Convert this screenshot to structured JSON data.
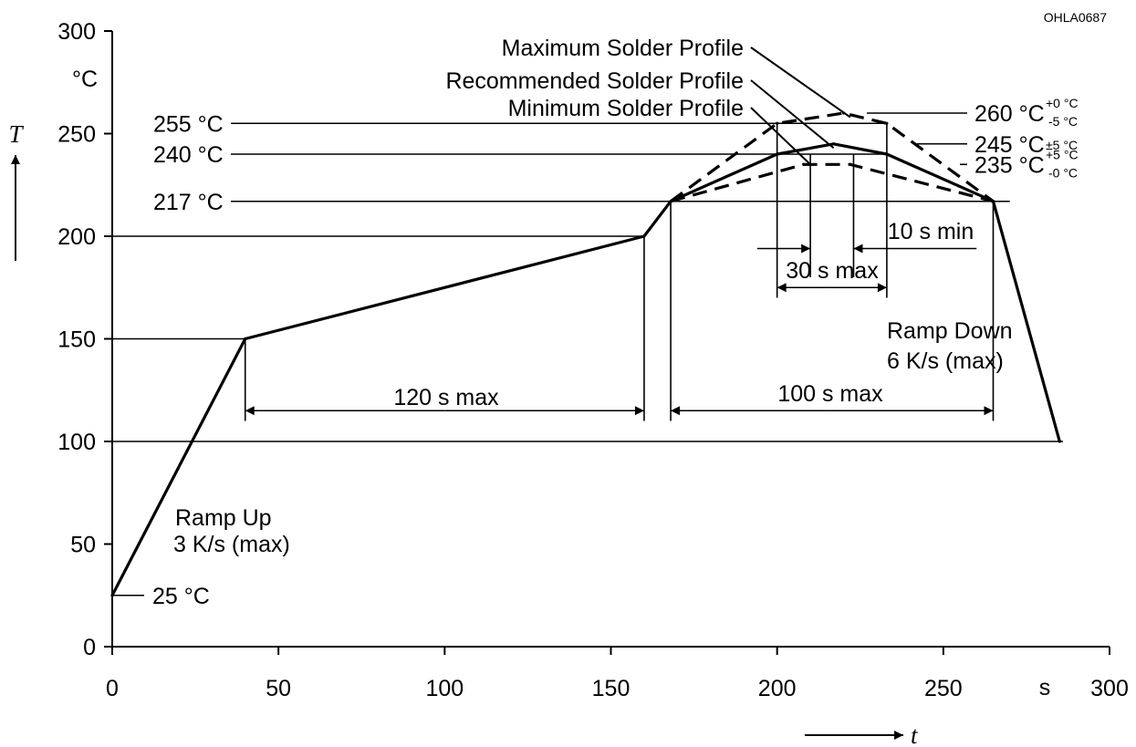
{
  "figure_code": "OHLA0687",
  "chart_data": {
    "type": "line",
    "xlabel": "t",
    "ylabel": "T",
    "x_unit": "s",
    "y_unit": "°C",
    "xlim": [
      0,
      300
    ],
    "ylim": [
      0,
      300
    ],
    "x_ticks": [
      0,
      50,
      100,
      150,
      200,
      250,
      300
    ],
    "y_ticks": [
      0,
      50,
      100,
      150,
      200,
      250,
      300
    ],
    "series": [
      {
        "name": "Recommended Solder Profile",
        "style": "solid",
        "x": [
          0,
          40,
          160,
          168,
          200,
          217,
          233,
          265,
          285
        ],
        "y": [
          25,
          150,
          200,
          217,
          240,
          245,
          240,
          217,
          100
        ]
      },
      {
        "name": "Maximum Solder Profile",
        "style": "dashed",
        "x": [
          168,
          200,
          220,
          233,
          265
        ],
        "y": [
          217,
          255,
          260,
          255,
          217
        ]
      },
      {
        "name": "Minimum Solder Profile",
        "style": "dashed",
        "x": [
          168,
          208,
          222,
          265
        ],
        "y": [
          217,
          235,
          235,
          217
        ]
      }
    ],
    "temperature_labels": [
      {
        "text": "255 °C",
        "y": 255
      },
      {
        "text": "240 °C",
        "y": 240
      },
      {
        "text": "217 °C",
        "y": 217
      },
      {
        "text": "25 °C",
        "y": 25
      }
    ],
    "peak_labels": [
      {
        "main": "260 °C",
        "upper": "+0 °C",
        "lower": "-5 °C"
      },
      {
        "main": "245 °C",
        "upper": "±5 °C",
        "lower": ""
      },
      {
        "main": "235 °C",
        "upper": "+5 °C",
        "lower": "-0 °C"
      }
    ],
    "profile_labels": [
      "Maximum Solder Profile",
      "Recommended Solder Profile",
      "Minimum Solder Profile"
    ],
    "annotations": {
      "ramp_up_1": "Ramp Up",
      "ramp_up_2": "3 K/s (max)",
      "ramp_down_1": "Ramp Down",
      "ramp_down_2": "6 K/s (max)",
      "preheat": "120 s max",
      "above_liquidus": "100 s max",
      "peak_window": "30 s max",
      "min_dwell": "10 s min"
    },
    "y_unit_label": "°C",
    "x_unit_label": "s"
  }
}
